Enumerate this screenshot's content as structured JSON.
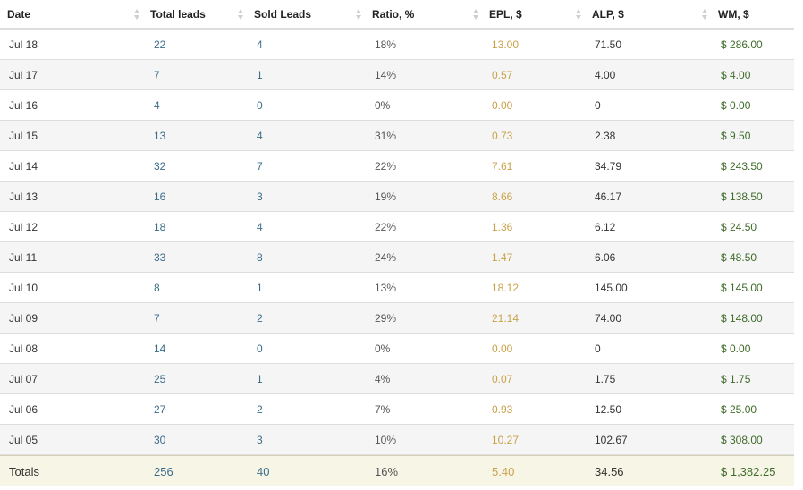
{
  "columns": {
    "date": "Date",
    "total_leads": "Total leads",
    "sold_leads": "Sold Leads",
    "ratio": "Ratio, %",
    "epl": "EPL, $",
    "alp": "ALP, $",
    "wm": "WM, $"
  },
  "rows": [
    {
      "date": "Jul 18",
      "total": "22",
      "sold": "4",
      "ratio": "18%",
      "epl": "13.00",
      "alp": "71.50",
      "wm": "$ 286.00"
    },
    {
      "date": "Jul 17",
      "total": "7",
      "sold": "1",
      "ratio": "14%",
      "epl": "0.57",
      "alp": "4.00",
      "wm": "$ 4.00"
    },
    {
      "date": "Jul 16",
      "total": "4",
      "sold": "0",
      "ratio": "0%",
      "epl": "0.00",
      "alp": "0",
      "wm": "$ 0.00"
    },
    {
      "date": "Jul 15",
      "total": "13",
      "sold": "4",
      "ratio": "31%",
      "epl": "0.73",
      "alp": "2.38",
      "wm": "$ 9.50"
    },
    {
      "date": "Jul 14",
      "total": "32",
      "sold": "7",
      "ratio": "22%",
      "epl": "7.61",
      "alp": "34.79",
      "wm": "$ 243.50"
    },
    {
      "date": "Jul 13",
      "total": "16",
      "sold": "3",
      "ratio": "19%",
      "epl": "8.66",
      "alp": "46.17",
      "wm": "$ 138.50"
    },
    {
      "date": "Jul 12",
      "total": "18",
      "sold": "4",
      "ratio": "22%",
      "epl": "1.36",
      "alp": "6.12",
      "wm": "$ 24.50"
    },
    {
      "date": "Jul 11",
      "total": "33",
      "sold": "8",
      "ratio": "24%",
      "epl": "1.47",
      "alp": "6.06",
      "wm": "$ 48.50"
    },
    {
      "date": "Jul 10",
      "total": "8",
      "sold": "1",
      "ratio": "13%",
      "epl": "18.12",
      "alp": "145.00",
      "wm": "$ 145.00"
    },
    {
      "date": "Jul 09",
      "total": "7",
      "sold": "2",
      "ratio": "29%",
      "epl": "21.14",
      "alp": "74.00",
      "wm": "$ 148.00"
    },
    {
      "date": "Jul 08",
      "total": "14",
      "sold": "0",
      "ratio": "0%",
      "epl": "0.00",
      "alp": "0",
      "wm": "$ 0.00"
    },
    {
      "date": "Jul 07",
      "total": "25",
      "sold": "1",
      "ratio": "4%",
      "epl": "0.07",
      "alp": "1.75",
      "wm": "$ 1.75"
    },
    {
      "date": "Jul 06",
      "total": "27",
      "sold": "2",
      "ratio": "7%",
      "epl": "0.93",
      "alp": "12.50",
      "wm": "$ 25.00"
    },
    {
      "date": "Jul 05",
      "total": "30",
      "sold": "3",
      "ratio": "10%",
      "epl": "10.27",
      "alp": "102.67",
      "wm": "$ 308.00"
    }
  ],
  "totals": {
    "label": "Totals",
    "total": "256",
    "sold": "40",
    "ratio": "16%",
    "epl": "5.40",
    "alp": "34.56",
    "wm": "$ 1,382.25"
  },
  "icons": {
    "sort": "sort-icon"
  },
  "colors": {
    "total_leads": "#3a6d8a",
    "epl": "#c9a24a",
    "wm": "#3f6b2a",
    "stripe": "#f5f5f5",
    "totals_bg": "#f7f5e6"
  }
}
